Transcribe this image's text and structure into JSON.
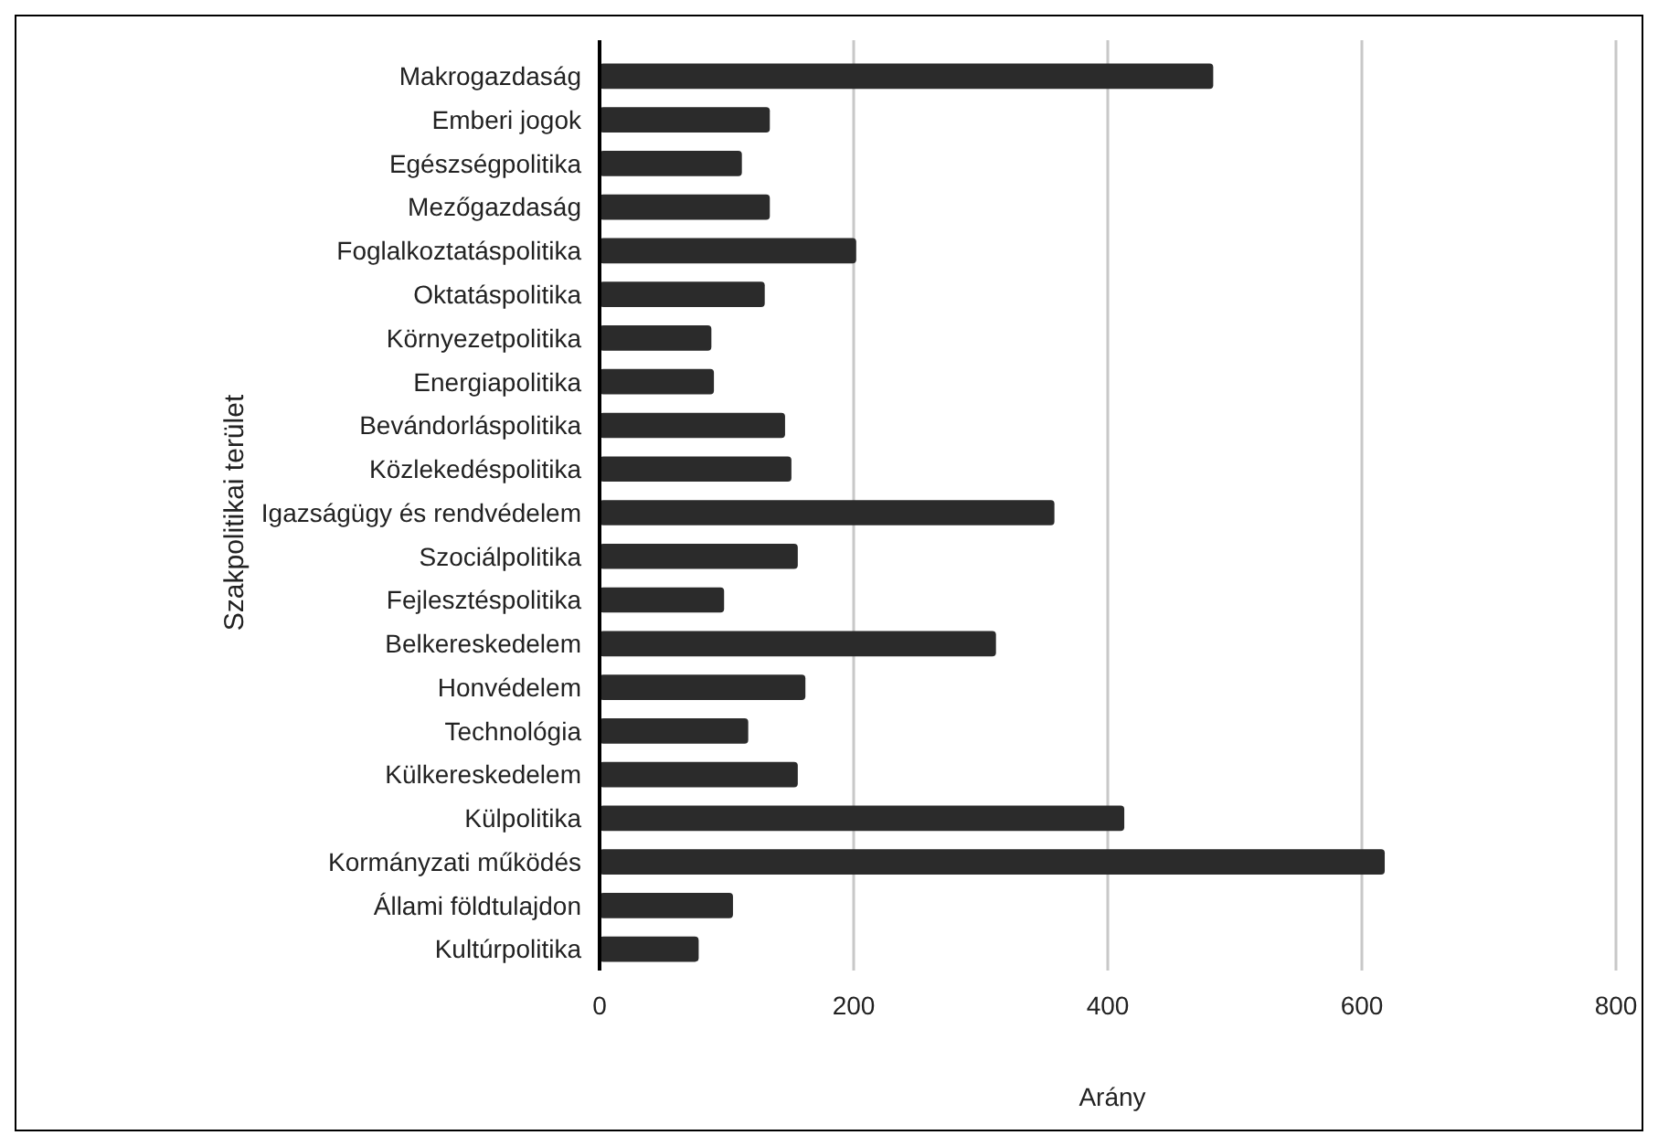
{
  "chart_data": {
    "type": "bar",
    "orientation": "horizontal",
    "xlabel": "Arány",
    "ylabel": "Szakpolitikai terület",
    "categories": [
      "Makrogazdaság",
      "Emberi jogok",
      "Egészségpolitika",
      "Mezőgazdaság",
      "Foglalkoztatáspolitika",
      "Oktatáspolitika",
      "Környezetpolitika",
      "Energiapolitika",
      "Bevándorláspolitika",
      "Közlekedéspolitika",
      "Igazságügy és rendvédelem",
      "Szociálpolitika",
      "Fejlesztéspolitika",
      "Belkereskedelem",
      "Honvédelem",
      "Technológia",
      "Külkereskedelem",
      "Külpolitika",
      "Kormányzati működés",
      "Állami földtulajdon",
      "Kultúrpolitika"
    ],
    "values": [
      483,
      134,
      112,
      134,
      202,
      130,
      88,
      90,
      146,
      151,
      358,
      156,
      98,
      312,
      162,
      117,
      156,
      413,
      618,
      105,
      78
    ],
    "color": "#2b2b2b",
    "xlim": [
      0,
      800
    ],
    "xticks": [
      0,
      200,
      400,
      600,
      800
    ],
    "grid": "x"
  }
}
